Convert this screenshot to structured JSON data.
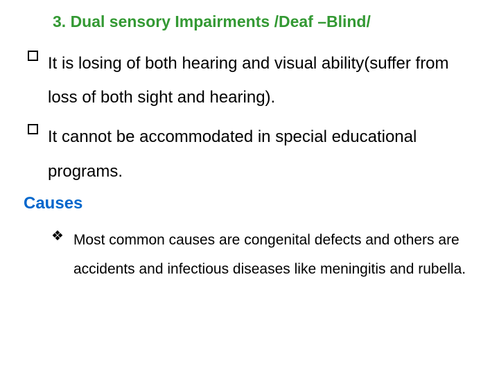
{
  "title": "3. Dual sensory Impairments /Deaf –Blind/",
  "bullets": [
    "It is losing of both hearing and visual ability(suffer from loss of both sight and hearing).",
    "It cannot be accommodated in special educational programs."
  ],
  "causesHeading": "Causes",
  "subBullets": [
    "Most common causes are congenital defects and others are accidents and infectious diseases like meningitis and rubella."
  ],
  "colors": {
    "titleColor": "#339933",
    "causesColor": "#0066cc",
    "textColor": "#000000",
    "background": "#ffffff"
  },
  "fonts": {
    "titleSize": 23,
    "bulletSize": 24,
    "subBulletSize": 21
  }
}
